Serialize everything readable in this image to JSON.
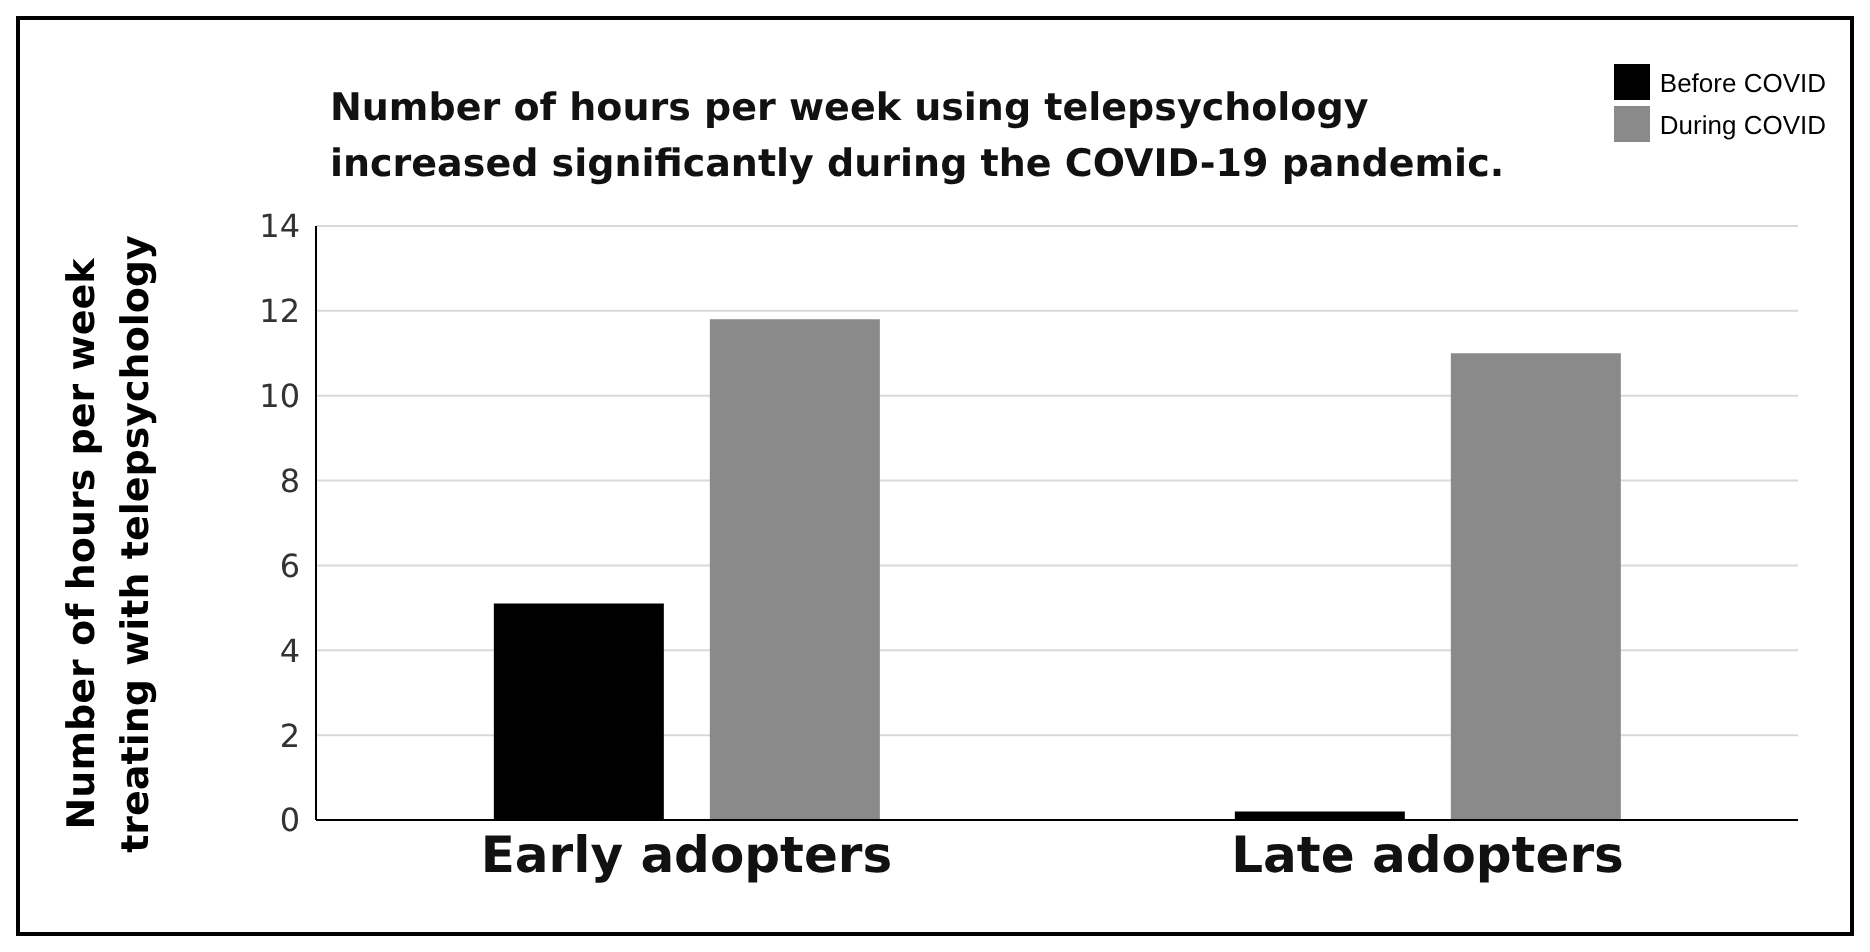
{
  "chart_data": {
    "type": "bar",
    "title": "Number of hours per week using telepsychology increased significantly during the COVID-19 pandemic.",
    "ylabel": "Number of hours per week treating with telepsychology",
    "categories": [
      "Early adopters",
      "Late adopters"
    ],
    "series": [
      {
        "name": "Before COVID",
        "color": "#000000",
        "values": [
          5.1,
          0.2
        ]
      },
      {
        "name": "During COVID",
        "color": "#8a8a8a",
        "values": [
          11.8,
          11.0
        ]
      }
    ],
    "ylim": [
      0,
      14
    ],
    "yticks": [
      0,
      2,
      4,
      6,
      8,
      10,
      12,
      14
    ],
    "grid": "y",
    "legend": "top right"
  }
}
